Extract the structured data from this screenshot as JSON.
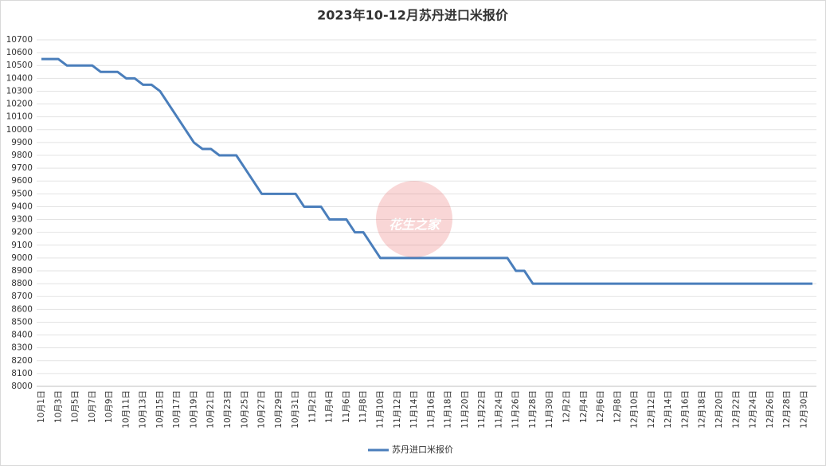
{
  "chart_data": {
    "type": "line",
    "title": "2023年10-12月苏丹进口米报价",
    "watermark": "花生之家",
    "categories": [
      "10月1日",
      null,
      "10月3日",
      null,
      "10月5日",
      null,
      "10月7日",
      null,
      "10月9日",
      null,
      "10月11日",
      null,
      "10月13日",
      null,
      "10月15日",
      null,
      "10月17日",
      null,
      "10月19日",
      null,
      "10月21日",
      null,
      "10月23日",
      null,
      "10月25日",
      null,
      "10月27日",
      null,
      "10月29日",
      null,
      "10月31日",
      null,
      "11月2日",
      null,
      "11月4日",
      null,
      "11月6日",
      null,
      "11月8日",
      null,
      "11月10日",
      null,
      "11月12日",
      null,
      "11月14日",
      null,
      "11月16日",
      null,
      "11月18日",
      null,
      "11月20日",
      null,
      "11月22日",
      null,
      "11月24日",
      null,
      "11月26日",
      null,
      "11月28日",
      null,
      "11月30日",
      null,
      "12月2日",
      null,
      "12月4日",
      null,
      "12月6日",
      null,
      "12月8日",
      null,
      "12月10日",
      null,
      "12月12日",
      null,
      "12月14日",
      null,
      "12月16日",
      null,
      "12月18日",
      null,
      "12月20日",
      null,
      "12月22日",
      null,
      "12月24日",
      null,
      "12月26日",
      null,
      "12月28日",
      null,
      "12月30日",
      null
    ],
    "series": [
      {
        "name": "苏丹进口米报价",
        "color": "#4a7ebb",
        "values": [
          10550,
          10550,
          10550,
          10500,
          10500,
          10500,
          10500,
          10450,
          10450,
          10450,
          10400,
          10400,
          10350,
          10350,
          10300,
          10200,
          10100,
          10000,
          9900,
          9850,
          9850,
          9800,
          9800,
          9800,
          9700,
          9600,
          9500,
          9500,
          9500,
          9500,
          9500,
          9400,
          9400,
          9400,
          9300,
          9300,
          9300,
          9200,
          9200,
          9100,
          9000,
          9000,
          9000,
          9000,
          9000,
          9000,
          9000,
          9000,
          9000,
          9000,
          9000,
          9000,
          9000,
          9000,
          9000,
          9000,
          8900,
          8900,
          8800,
          8800,
          8800,
          8800,
          8800,
          8800,
          8800,
          8800,
          8800,
          8800,
          8800,
          8800,
          8800,
          8800,
          8800,
          8800,
          8800,
          8800,
          8800,
          8800,
          8800,
          8800,
          8800,
          8800,
          8800,
          8800,
          8800,
          8800,
          8800,
          8800,
          8800,
          8800,
          8800,
          8800
        ]
      }
    ],
    "ylim": [
      8000,
      10700
    ],
    "yticks": [
      8000,
      8100,
      8200,
      8300,
      8400,
      8500,
      8600,
      8700,
      8800,
      8900,
      9000,
      9100,
      9200,
      9300,
      9400,
      9500,
      9600,
      9700,
      9800,
      9900,
      10000,
      10100,
      10200,
      10300,
      10400,
      10500,
      10600,
      10700
    ],
    "grid": true,
    "legend": "bottom"
  }
}
